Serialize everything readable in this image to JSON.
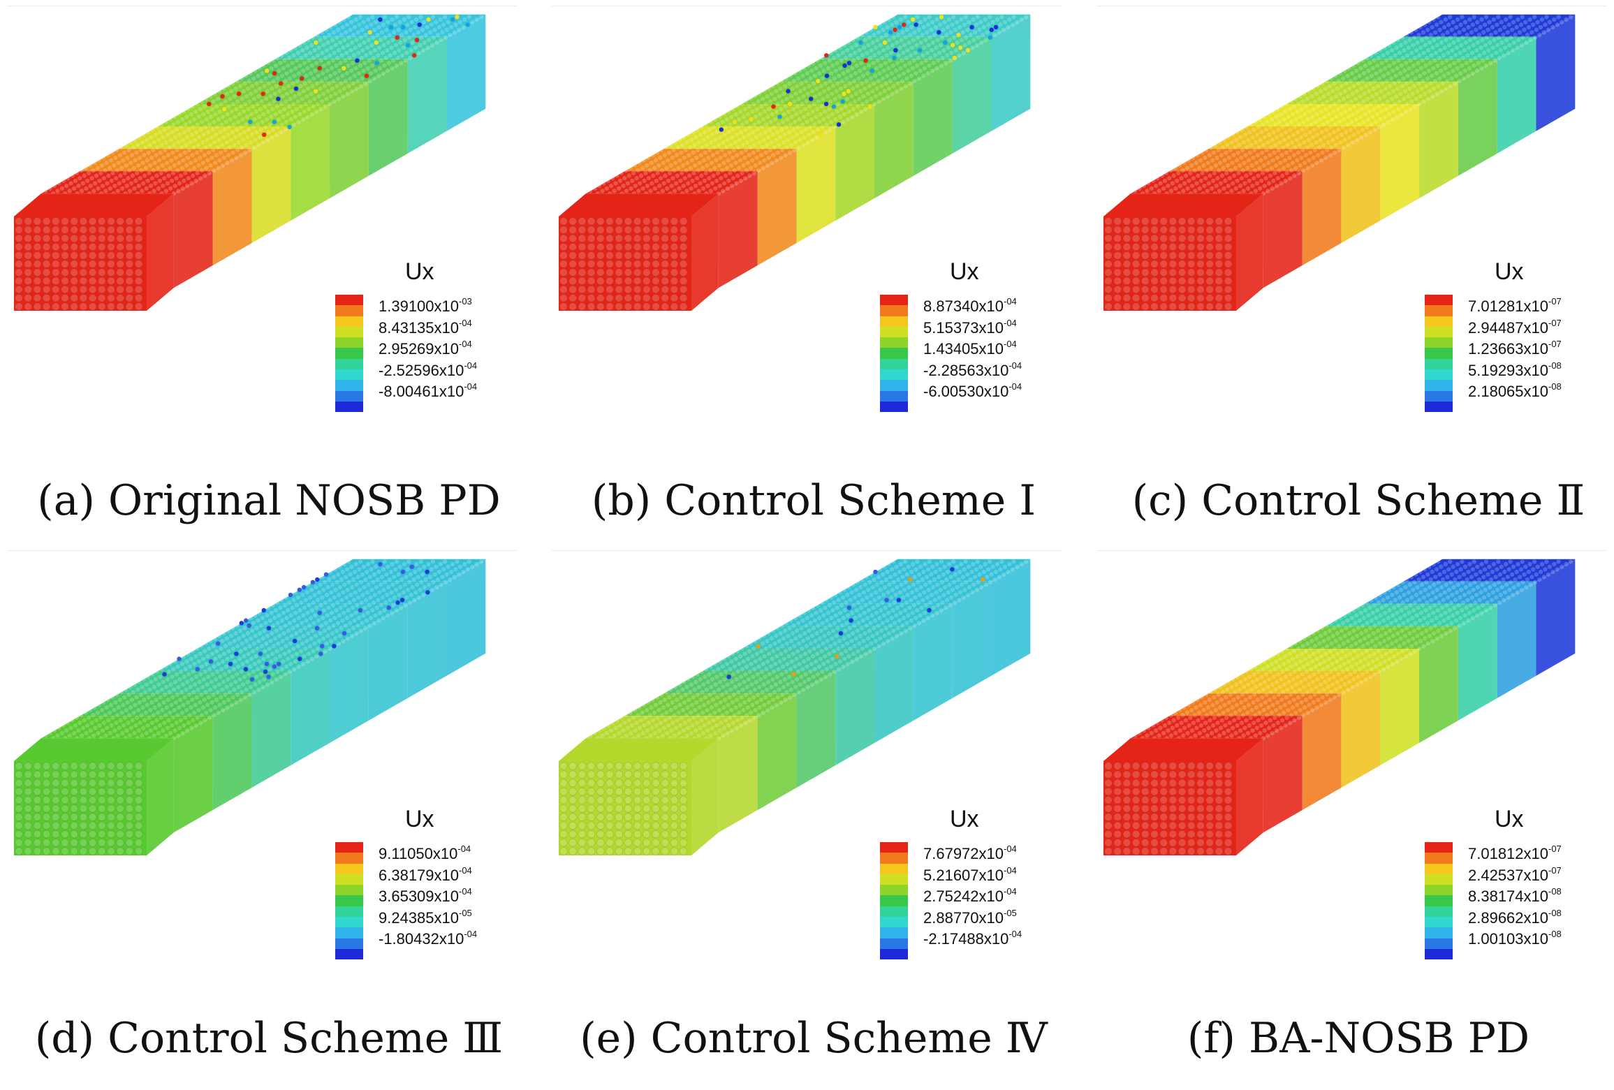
{
  "figure": {
    "panels": [
      {
        "id": "a",
        "caption": "(a) Original NOSB PD",
        "legend": {
          "title": "Ux",
          "labels": [
            {
              "mantissa": "1.39100x10",
              "exp": "-03"
            },
            {
              "mantissa": "8.43135x10",
              "exp": "-04"
            },
            {
              "mantissa": "2.95269x10",
              "exp": "-04"
            },
            {
              "mantissa": "-2.52596x10",
              "exp": "-04"
            },
            {
              "mantissa": "-8.00461x10",
              "exp": "-04"
            }
          ]
        },
        "beam": {
          "front_color": "#e52418",
          "segments": [
            "#e52418",
            "#f08a1c",
            "#d8dc22",
            "#98d82a",
            "#7fcf38",
            "#55c85a",
            "#3fcfb0",
            "#34c4dc"
          ],
          "noise": "high",
          "noise_colors": [
            "#1a2fd8",
            "#e52418",
            "#f0e024",
            "#1aa0e0"
          ]
        }
      },
      {
        "id": "b",
        "caption": "(b) Control Scheme Ⅰ",
        "legend": {
          "title": "Ux",
          "labels": [
            {
              "mantissa": "8.87340x10",
              "exp": "-04"
            },
            {
              "mantissa": "5.15373x10",
              "exp": "-04"
            },
            {
              "mantissa": "1.43405x10",
              "exp": "-04"
            },
            {
              "mantissa": "-2.28563x10",
              "exp": "-04"
            },
            {
              "mantissa": "-6.00530x10",
              "exp": "-04"
            }
          ]
        },
        "beam": {
          "front_color": "#e52418",
          "segments": [
            "#e52418",
            "#f08a1c",
            "#dde024",
            "#a6d82a",
            "#7fd036",
            "#5ccc52",
            "#45cf9a",
            "#3ccbc8"
          ],
          "noise": "high",
          "noise_colors": [
            "#1a2fd8",
            "#e52418",
            "#f0e024",
            "#1aa0e0"
          ]
        }
      },
      {
        "id": "c",
        "caption": "(c) Control Scheme Ⅱ",
        "legend": {
          "title": "Ux",
          "labels": [
            {
              "mantissa": "7.01281x10",
              "exp": "-07"
            },
            {
              "mantissa": "2.94487x10",
              "exp": "-07"
            },
            {
              "mantissa": "1.23663x10",
              "exp": "-07"
            },
            {
              "mantissa": "5.19293x10",
              "exp": "-08"
            },
            {
              "mantissa": "2.18065x10",
              "exp": "-08"
            }
          ]
        },
        "beam": {
          "front_color": "#e52418",
          "segments": [
            "#e52418",
            "#f07a1c",
            "#f0c21c",
            "#e8e424",
            "#b8dc2a",
            "#66cc48",
            "#36cfa8",
            "#1e3ad8"
          ],
          "noise": "none",
          "noise_colors": []
        }
      },
      {
        "id": "d",
        "caption": "(d) Control Scheme Ⅲ",
        "legend": {
          "title": "Ux",
          "labels": [
            {
              "mantissa": "9.11050x10",
              "exp": "-04"
            },
            {
              "mantissa": "6.38179x10",
              "exp": "-04"
            },
            {
              "mantissa": "3.65309x10",
              "exp": "-04"
            },
            {
              "mantissa": "9.24385x10",
              "exp": "-05"
            },
            {
              "mantissa": "-1.80432x10",
              "exp": "-04"
            }
          ]
        },
        "beam": {
          "front_color": "#58c92e",
          "segments": [
            "#58c92e",
            "#4cc85a",
            "#3fcb92",
            "#38c9bc",
            "#36c6cc",
            "#34c4d4",
            "#33c2d6",
            "#32c0d8"
          ],
          "noise": "medium",
          "noise_colors": [
            "#1e3ad8",
            "#3a5ae0"
          ]
        }
      },
      {
        "id": "e",
        "caption": "(e) Control Scheme Ⅳ",
        "legend": {
          "title": "Ux",
          "labels": [
            {
              "mantissa": "7.67972x10",
              "exp": "-04"
            },
            {
              "mantissa": "5.21607x10",
              "exp": "-04"
            },
            {
              "mantissa": "2.75242x10",
              "exp": "-04"
            },
            {
              "mantissa": "2.88770x10",
              "exp": "-05"
            },
            {
              "mantissa": "-2.17488x10",
              "exp": "-04"
            }
          ]
        },
        "beam": {
          "front_color": "#b4d82c",
          "segments": [
            "#b4d82c",
            "#72cc3a",
            "#52c86a",
            "#3ec8a4",
            "#36c6c4",
            "#34c4d0",
            "#33c2d6",
            "#32c0d8"
          ],
          "noise": "low",
          "noise_colors": [
            "#1e3ad8",
            "#3a5ae0",
            "#e5a018"
          ]
        }
      },
      {
        "id": "f",
        "caption": "(f) BA-NOSB PD",
        "legend": {
          "title": "Ux",
          "labels": [
            {
              "mantissa": "7.01812x10",
              "exp": "-07"
            },
            {
              "mantissa": "2.42537x10",
              "exp": "-07"
            },
            {
              "mantissa": "8.38174x10",
              "exp": "-08"
            },
            {
              "mantissa": "2.89662x10",
              "exp": "-08"
            },
            {
              "mantissa": "1.00103x10",
              "exp": "-08"
            }
          ]
        },
        "beam": {
          "front_color": "#e52418",
          "segments": [
            "#e52418",
            "#f07a1c",
            "#f0c21c",
            "#cfe024",
            "#6ccc3c",
            "#38cfa8",
            "#2ea0e0",
            "#1e3ad8"
          ],
          "noise": "none",
          "noise_colors": []
        }
      }
    ],
    "legend_colors": [
      "#e52418",
      "#f07a1c",
      "#f5c61c",
      "#cfe024",
      "#8cd42a",
      "#38c84a",
      "#30d49a",
      "#30d8d0",
      "#30b4ea",
      "#2a78e6",
      "#1e2ad8"
    ]
  }
}
